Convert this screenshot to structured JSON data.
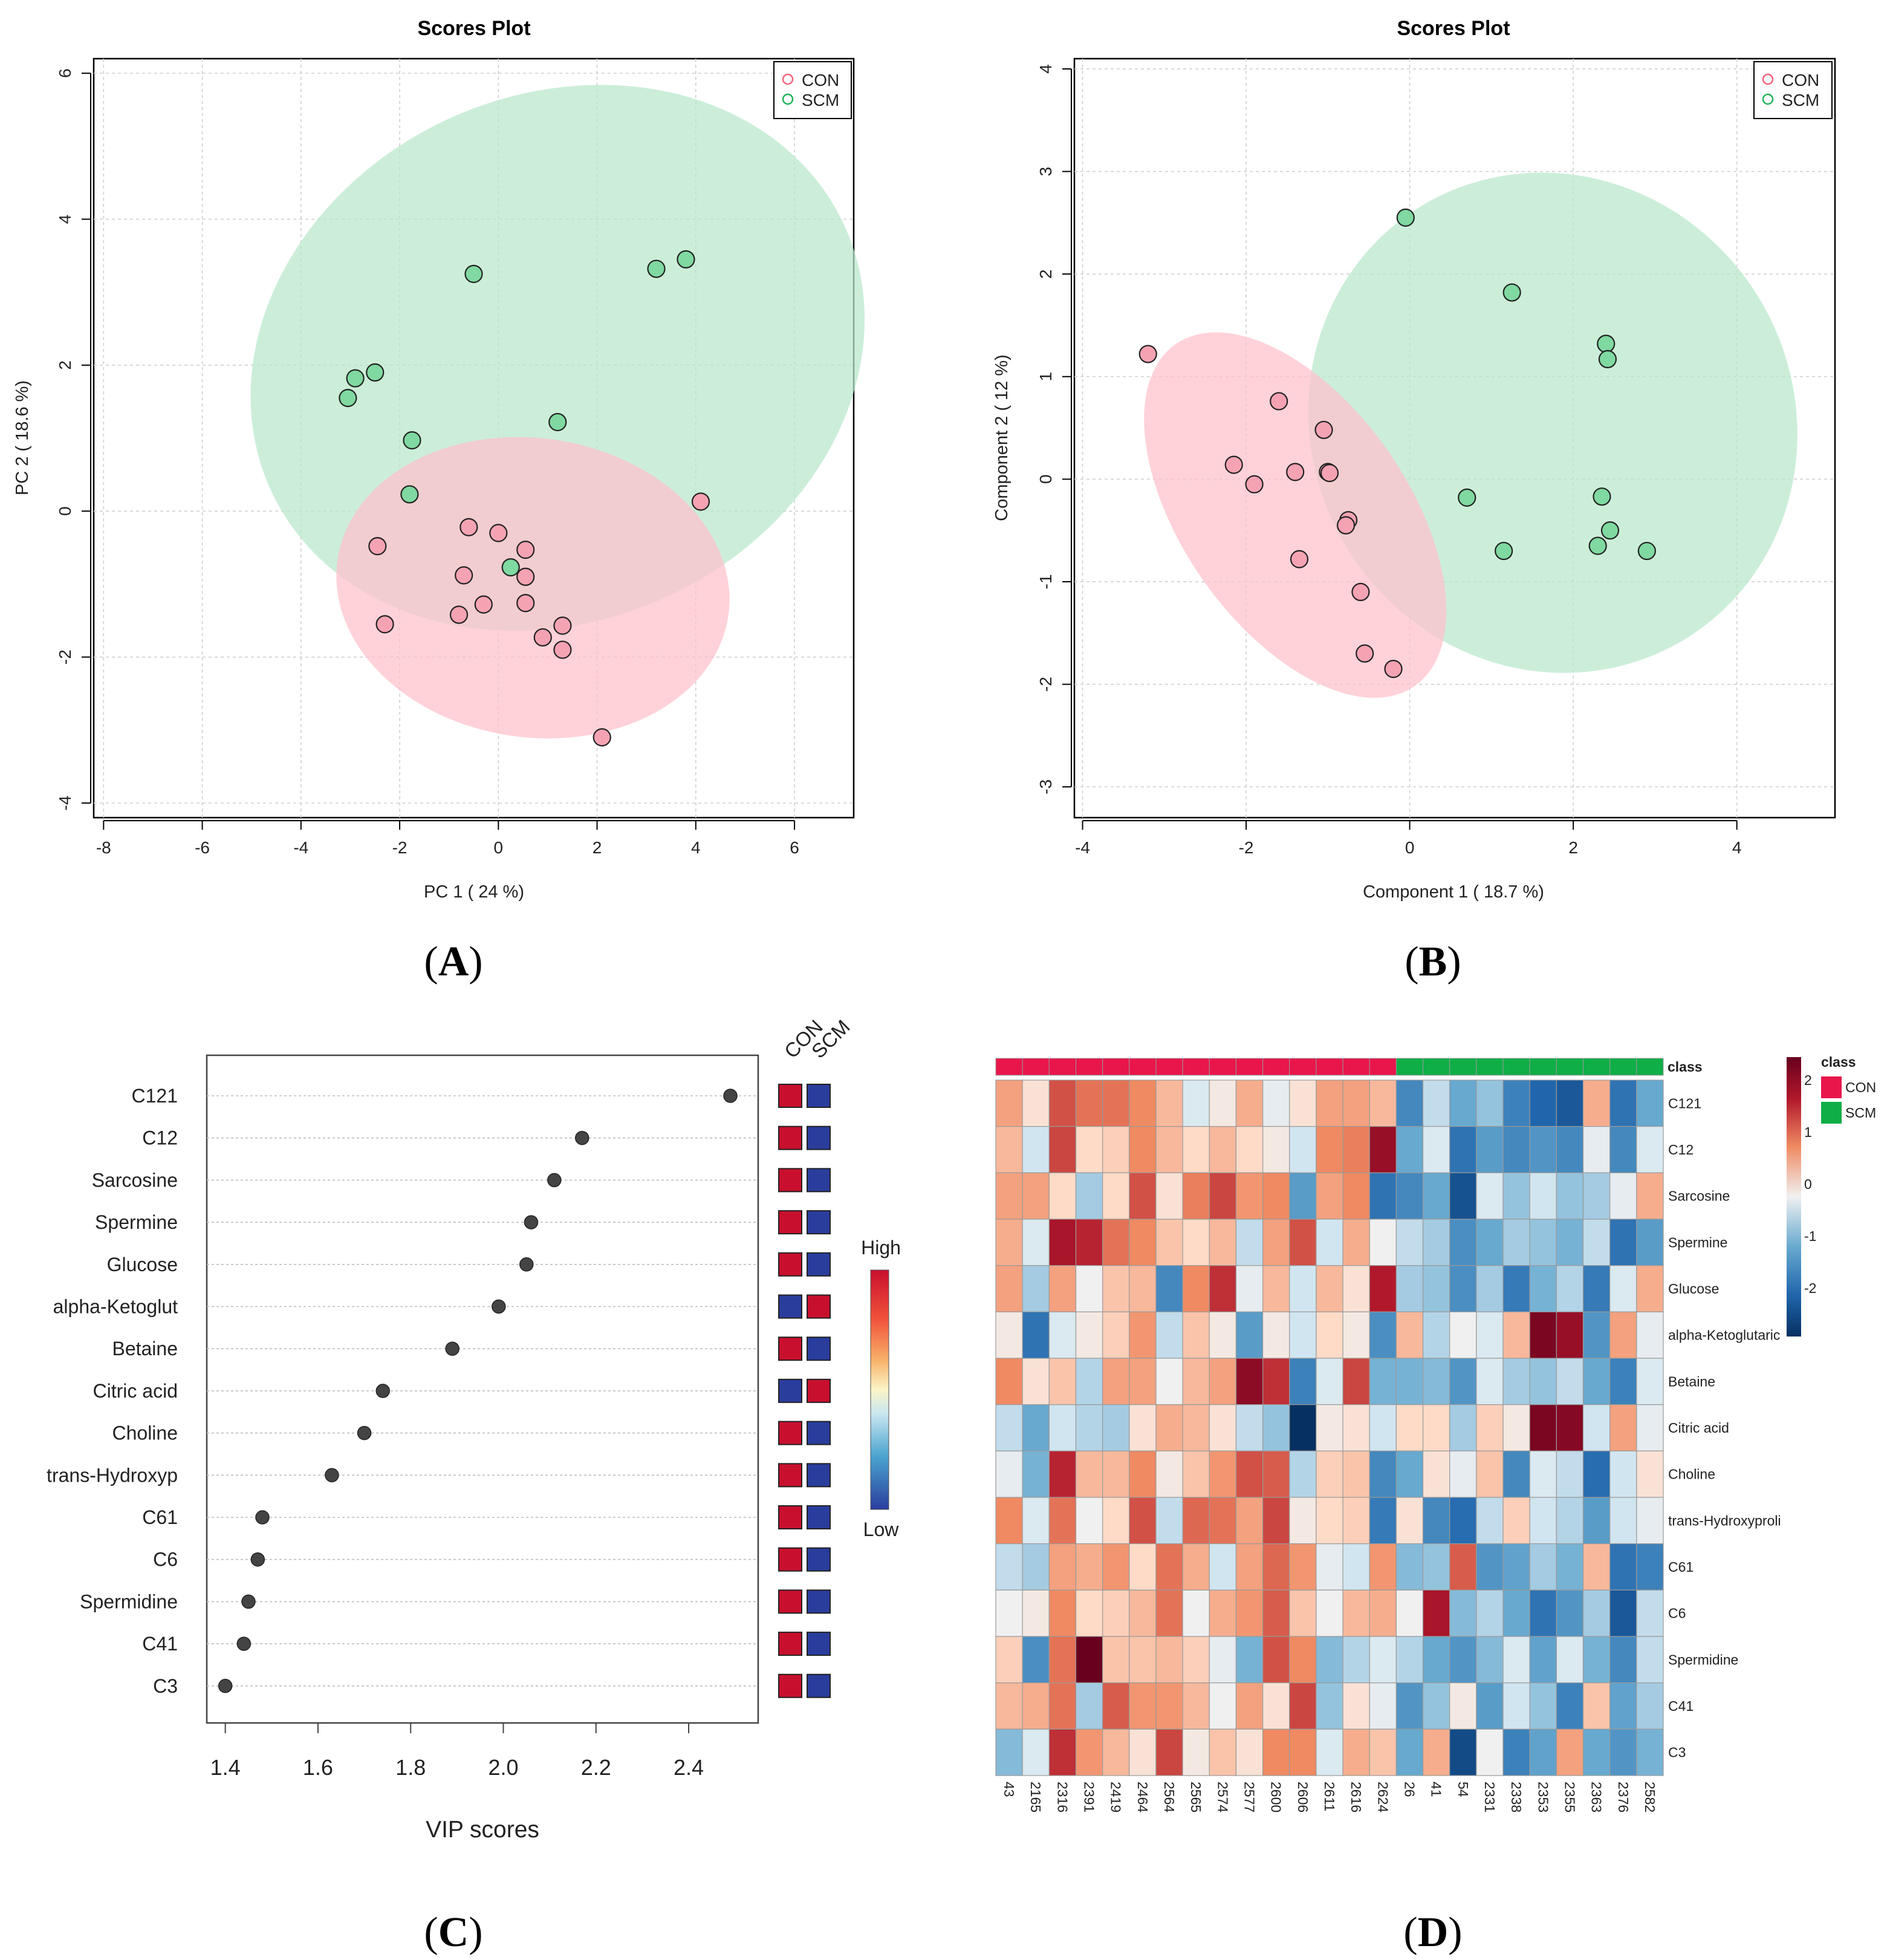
{
  "colors": {
    "con": "#f2637e",
    "con_fill": "#f5a3b3",
    "scm": "#22b35a",
    "scm_fill": "#7fd9a0",
    "con_ellipse": "#ffc0cb",
    "scm_ellipse": "#b8e8cb",
    "high": "#c8102e",
    "low": "#2a3d9c",
    "class_con": "#e8164b",
    "class_scm": "#0fae47"
  },
  "panel_labels": [
    "A",
    "B",
    "C",
    "D"
  ],
  "chart_data": [
    {
      "id": "A",
      "type": "scatter",
      "title": "Scores Plot",
      "xlabel": "PC 1 ( 24 %)",
      "ylabel": "PC 2 ( 18.6 %)",
      "xlim": [
        -8.2,
        7.2
      ],
      "ylim": [
        -4.2,
        6.2
      ],
      "xticks": [
        -8,
        -6,
        -4,
        -2,
        0,
        2,
        4,
        6
      ],
      "yticks": [
        -4,
        -2,
        0,
        2,
        4,
        6
      ],
      "legend": [
        "CON",
        "SCM"
      ],
      "legend_position": "top-right",
      "ellipses": [
        {
          "group": "SCM",
          "cx": 1.2,
          "cy": 2.1,
          "rx": 6.4,
          "ry": 3.6,
          "angle_deg": 25
        },
        {
          "group": "CON",
          "cx": 0.7,
          "cy": -1.05,
          "rx": 4.0,
          "ry": 2.05,
          "angle_deg": -8
        }
      ],
      "series": [
        {
          "name": "SCM",
          "points": [
            [
              -0.5,
              3.25
            ],
            [
              3.2,
              3.32
            ],
            [
              3.8,
              3.45
            ],
            [
              -2.5,
              1.9
            ],
            [
              -2.9,
              1.82
            ],
            [
              -3.05,
              1.55
            ],
            [
              1.2,
              1.22
            ],
            [
              -1.75,
              0.97
            ],
            [
              -1.8,
              0.23
            ],
            [
              0.25,
              -0.77
            ]
          ]
        },
        {
          "name": "CON",
          "points": [
            [
              4.1,
              0.13
            ],
            [
              -0.6,
              -0.22
            ],
            [
              0.0,
              -0.3
            ],
            [
              -2.45,
              -0.48
            ],
            [
              0.55,
              -0.53
            ],
            [
              -0.7,
              -0.88
            ],
            [
              0.55,
              -0.9
            ],
            [
              -0.3,
              -1.28
            ],
            [
              0.55,
              -1.26
            ],
            [
              -0.8,
              -1.42
            ],
            [
              -2.3,
              -1.55
            ],
            [
              1.3,
              -1.57
            ],
            [
              0.9,
              -1.73
            ],
            [
              1.3,
              -1.9
            ],
            [
              2.1,
              -3.1
            ]
          ]
        }
      ]
    },
    {
      "id": "B",
      "type": "scatter",
      "title": "Scores Plot",
      "xlabel": "Component 1 ( 18.7 %)",
      "ylabel": "Component 2 ( 12 %)",
      "xlim": [
        -4.1,
        5.2
      ],
      "ylim": [
        -3.3,
        4.1
      ],
      "xticks": [
        -4,
        -2,
        0,
        2,
        4
      ],
      "yticks": [
        -3,
        -2,
        -1,
        0,
        1,
        2,
        3,
        4
      ],
      "legend": [
        "CON",
        "SCM"
      ],
      "legend_position": "top-right",
      "ellipses": [
        {
          "group": "SCM",
          "cx": 1.75,
          "cy": 0.55,
          "rx": 3.1,
          "ry": 2.35,
          "angle_deg": -58
        },
        {
          "group": "CON",
          "cx": -1.4,
          "cy": -0.35,
          "rx": 2.55,
          "ry": 1.1,
          "angle_deg": -55
        }
      ],
      "series": [
        {
          "name": "SCM",
          "points": [
            [
              -0.05,
              2.55
            ],
            [
              1.25,
              1.82
            ],
            [
              2.4,
              1.32
            ],
            [
              2.42,
              1.17
            ],
            [
              0.7,
              -0.18
            ],
            [
              2.35,
              -0.17
            ],
            [
              2.45,
              -0.5
            ],
            [
              1.15,
              -0.7
            ],
            [
              2.3,
              -0.65
            ],
            [
              2.9,
              -0.7
            ]
          ]
        },
        {
          "name": "CON",
          "points": [
            [
              -3.2,
              1.22
            ],
            [
              -1.6,
              0.76
            ],
            [
              -1.05,
              0.48
            ],
            [
              -2.15,
              0.14
            ],
            [
              -1.4,
              0.07
            ],
            [
              -1.0,
              0.07
            ],
            [
              -0.98,
              0.06
            ],
            [
              -1.9,
              -0.05
            ],
            [
              -0.75,
              -0.4
            ],
            [
              -0.78,
              -0.45
            ],
            [
              -1.35,
              -0.78
            ],
            [
              -0.6,
              -1.1
            ],
            [
              -0.55,
              -1.7
            ],
            [
              -0.2,
              -1.85
            ]
          ]
        }
      ]
    },
    {
      "id": "C",
      "type": "scatter",
      "xlabel": "VIP scores",
      "xlim": [
        1.36,
        2.55
      ],
      "xticks": [
        "1.4",
        "1.6",
        "1.8",
        "2.0",
        "2.2",
        "2.4"
      ],
      "column_labels": [
        "CON",
        "SCM"
      ],
      "colorbar": {
        "high": "High",
        "low": "Low"
      },
      "features": [
        "C121",
        "C12",
        "Sarcosine",
        "Spermine",
        "Glucose",
        "alpha-Ketoglut",
        "Betaine",
        "Citric acid",
        "Choline",
        "trans-Hydroxyp",
        "C61",
        "C6",
        "Spermidine",
        "C41",
        "C3"
      ],
      "values": [
        2.49,
        2.17,
        2.11,
        2.06,
        2.05,
        1.99,
        1.89,
        1.74,
        1.7,
        1.63,
        1.48,
        1.47,
        1.45,
        1.44,
        1.4
      ],
      "con_high": [
        true,
        true,
        true,
        true,
        true,
        false,
        true,
        false,
        true,
        true,
        true,
        true,
        true,
        true,
        true
      ]
    },
    {
      "id": "D",
      "type": "heatmap",
      "class_title": "class",
      "legend": [
        "CON",
        "SCM"
      ],
      "scale_ticks": [
        "2",
        "1",
        "0",
        "-1",
        "-2"
      ],
      "samples": [
        "43",
        "2165",
        "2316",
        "2391",
        "2419",
        "2464",
        "2564",
        "2565",
        "2574",
        "2577",
        "2600",
        "2606",
        "2611",
        "2616",
        "2624",
        "26",
        "41",
        "54",
        "2331",
        "2338",
        "2353",
        "2355",
        "2363",
        "2376",
        "2582"
      ],
      "sample_class": [
        "CON",
        "CON",
        "CON",
        "CON",
        "CON",
        "CON",
        "CON",
        "CON",
        "CON",
        "CON",
        "CON",
        "CON",
        "CON",
        "CON",
        "CON",
        "SCM",
        "SCM",
        "SCM",
        "SCM",
        "SCM",
        "SCM",
        "SCM",
        "SCM",
        "SCM",
        "SCM"
      ],
      "features": [
        "C121",
        "C12",
        "Sarcosine",
        "Spermine",
        "Glucose",
        "alpha-Ketoglutaric",
        "Betaine",
        "Citric acid",
        "Choline",
        "trans-Hydroxyproli",
        "C61",
        "C6",
        "Spermidine",
        "C41",
        "C3"
      ],
      "values": [
        [
          0.8,
          0.2,
          1.5,
          1.2,
          1.2,
          1.0,
          0.6,
          -0.2,
          0.1,
          0.7,
          -0.1,
          0.2,
          0.8,
          0.8,
          0.6,
          -1.5,
          -0.4,
          -1.0,
          -0.7,
          -1.6,
          -2.0,
          -2.2,
          0.7,
          -1.8,
          -1.0
        ],
        [
          0.6,
          -0.3,
          1.6,
          0.3,
          0.4,
          1.0,
          0.6,
          0.3,
          0.6,
          0.3,
          0.1,
          -0.3,
          1.0,
          1.1,
          2.3,
          -1.0,
          -0.2,
          -1.8,
          -1.2,
          -1.5,
          -1.3,
          -1.5,
          -0.1,
          -1.5,
          -0.2
        ],
        [
          0.8,
          0.8,
          0.3,
          -0.6,
          0.3,
          1.5,
          0.2,
          1.1,
          1.6,
          0.9,
          1.0,
          -1.2,
          0.8,
          1.0,
          -1.8,
          -1.5,
          -1.0,
          -2.3,
          -0.2,
          -0.7,
          -0.3,
          -0.7,
          -0.6,
          -0.1,
          0.7
        ],
        [
          0.7,
          -0.2,
          2.1,
          1.9,
          1.2,
          1.0,
          0.5,
          0.3,
          0.6,
          -0.4,
          0.8,
          1.5,
          -0.3,
          0.7,
          0.0,
          -0.4,
          -0.6,
          -1.4,
          -1.0,
          -0.6,
          -0.7,
          -0.9,
          -0.4,
          -1.8,
          -1.2
        ],
        [
          0.8,
          -0.6,
          0.8,
          0.0,
          0.5,
          0.6,
          -1.5,
          1.0,
          1.8,
          -0.1,
          0.6,
          -0.3,
          0.6,
          0.2,
          2.0,
          -0.6,
          -0.7,
          -1.4,
          -0.6,
          -1.7,
          -0.9,
          -0.5,
          -1.7,
          -0.2,
          0.7
        ],
        [
          0.1,
          -1.8,
          -0.2,
          0.1,
          0.4,
          0.9,
          -0.4,
          0.5,
          0.1,
          -1.2,
          0.1,
          -0.3,
          0.3,
          0.1,
          -1.4,
          0.6,
          -0.5,
          0.0,
          -0.2,
          0.6,
          2.6,
          2.3,
          -1.3,
          0.8,
          -0.1
        ],
        [
          1.0,
          0.2,
          0.5,
          -0.5,
          0.8,
          0.8,
          0.0,
          0.6,
          0.8,
          2.4,
          1.8,
          -1.6,
          -0.2,
          1.6,
          -0.9,
          -0.9,
          -0.8,
          -1.3,
          -0.2,
          -0.6,
          -0.7,
          -0.4,
          -1.0,
          -1.6,
          -0.2
        ],
        [
          -0.4,
          -1.0,
          -0.3,
          -0.5,
          -0.6,
          0.2,
          0.7,
          0.6,
          0.2,
          -0.4,
          -0.7,
          -2.8,
          0.1,
          0.2,
          -0.3,
          0.3,
          0.3,
          -0.6,
          0.4,
          0.1,
          2.6,
          2.5,
          -0.3,
          0.8,
          -0.1
        ],
        [
          -0.1,
          -0.9,
          1.9,
          0.6,
          0.6,
          1.0,
          0.1,
          0.5,
          0.9,
          1.5,
          1.4,
          -0.5,
          0.4,
          0.5,
          -1.5,
          -1.0,
          0.2,
          -0.1,
          0.5,
          -1.5,
          -0.2,
          -0.4,
          -1.9,
          -0.3,
          0.2
        ],
        [
          1.0,
          -0.2,
          1.2,
          0.0,
          0.3,
          1.5,
          -0.4,
          1.3,
          1.2,
          0.8,
          1.6,
          0.1,
          0.3,
          0.4,
          -1.7,
          0.2,
          -1.5,
          -1.9,
          -0.4,
          0.4,
          -0.3,
          -0.5,
          -1.2,
          -0.3,
          -0.1
        ],
        [
          -0.4,
          -0.6,
          0.8,
          0.7,
          0.9,
          0.3,
          1.2,
          0.7,
          -0.3,
          0.8,
          1.3,
          0.9,
          -0.1,
          -0.3,
          0.9,
          -0.8,
          -0.7,
          1.4,
          -1.3,
          -1.1,
          -0.6,
          -0.9,
          0.6,
          -1.8,
          -1.6
        ],
        [
          0.0,
          0.1,
          1.0,
          0.3,
          0.4,
          0.6,
          1.2,
          0.0,
          0.7,
          0.9,
          1.4,
          0.5,
          0.0,
          0.6,
          0.7,
          0.0,
          2.1,
          -0.8,
          -0.5,
          -1.0,
          -1.8,
          -1.3,
          -0.6,
          -2.2,
          -0.4
        ],
        [
          0.4,
          -1.4,
          1.2,
          2.8,
          0.5,
          0.5,
          0.6,
          0.4,
          -0.1,
          -0.9,
          1.5,
          1.0,
          -0.8,
          -0.5,
          -0.2,
          -0.5,
          -1.0,
          -1.3,
          -0.8,
          -0.2,
          -1.1,
          -0.2,
          -0.9,
          -1.5,
          -0.4
        ],
        [
          0.6,
          0.7,
          1.2,
          -0.6,
          1.4,
          0.9,
          0.9,
          0.6,
          0.0,
          0.8,
          0.2,
          1.6,
          -0.7,
          0.2,
          -0.1,
          -1.3,
          -0.7,
          0.1,
          -1.2,
          -0.3,
          -0.7,
          -1.6,
          0.5,
          -1.1,
          -0.6
        ],
        [
          -0.8,
          -0.2,
          1.8,
          0.9,
          0.6,
          0.2,
          1.6,
          0.1,
          0.5,
          0.2,
          1.0,
          1.0,
          -0.2,
          0.7,
          0.5,
          -1.0,
          0.7,
          -2.4,
          0.0,
          -1.6,
          -1.1,
          0.8,
          -1.0,
          -1.3,
          -0.9
        ]
      ]
    }
  ]
}
